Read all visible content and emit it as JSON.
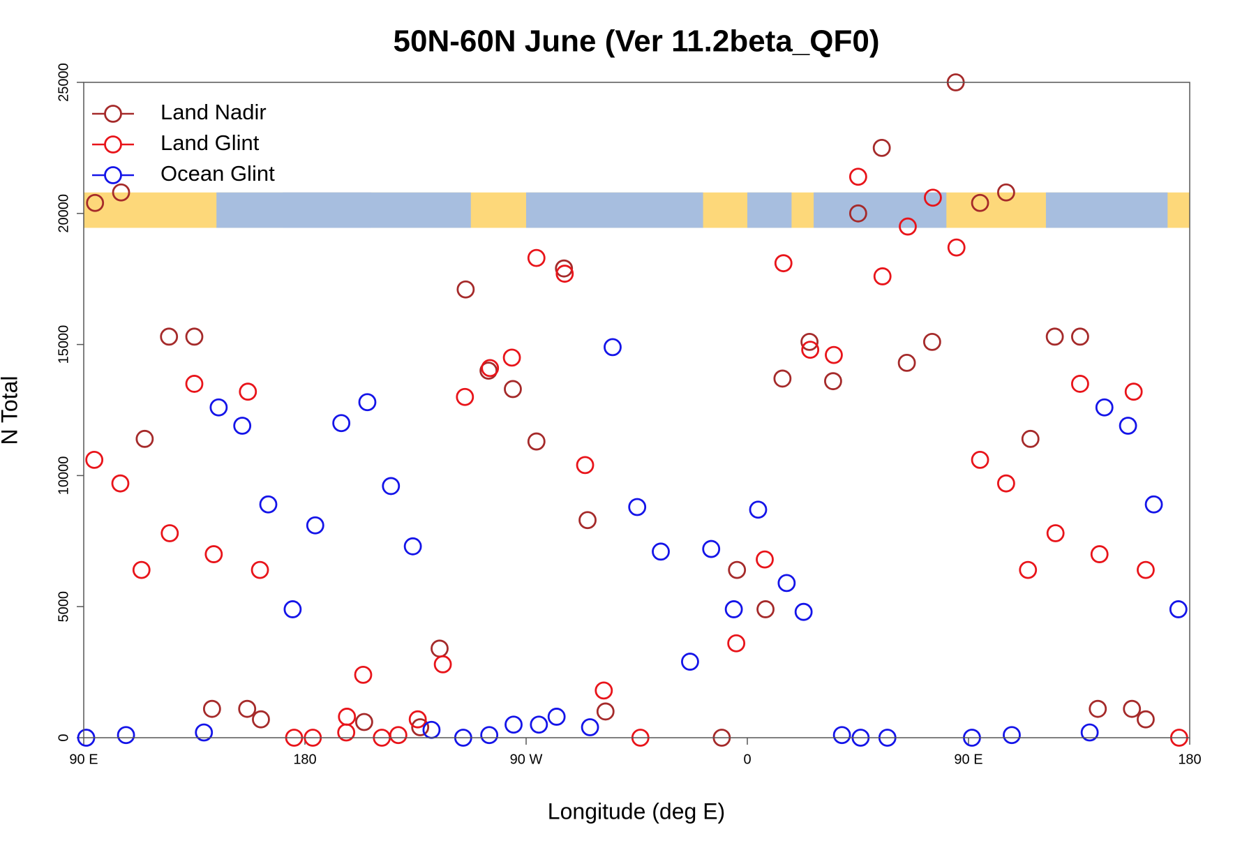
{
  "chart_data": {
    "type": "scatter",
    "title": "50N-60N June (Ver 11.2beta_QF0)",
    "x_label": "Longitude (deg E)",
    "y_label": "N Total",
    "xlim": [
      90,
      540
    ],
    "ylim": [
      0,
      25000
    ],
    "xticks": [
      {
        "value": 90,
        "label": "90 E"
      },
      180,
      {
        "value": 270,
        "label": "90 W"
      },
      {
        "value": 360,
        "label": "0"
      },
      {
        "value": 450,
        "label": "90 E"
      },
      {
        "value": 540,
        "label": "180"
      }
    ],
    "yticks": [
      0,
      5000,
      10000,
      15000,
      20000,
      25000
    ],
    "grid": false,
    "legend": "top-left",
    "series": [
      {
        "name": "Land Nadir",
        "color": "#a52a2a",
        "x": [
          94.6,
          105.2,
          114.8,
          124.7,
          135.0,
          142.2,
          156.5,
          162.1,
          204.1,
          226.9,
          234.8,
          245.4,
          254.7,
          264.6,
          274.2,
          285.4,
          295.0,
          302.3,
          349.6,
          355.8,
          367.4,
          374.3,
          385.3,
          394.9,
          405.1,
          414.7,
          424.9,
          435.2,
          444.8,
          454.7,
          465.3,
          475.2,
          485.1,
          495.4,
          502.6,
          516.5,
          522.1
        ],
        "values": [
          20400,
          20800,
          11400,
          15300,
          15300,
          1100,
          1100,
          700,
          600,
          400,
          3400,
          17100,
          14000,
          13300,
          11300,
          17900,
          8300,
          1000,
          0,
          6400,
          4900,
          13700,
          15100,
          13600,
          20000,
          22500,
          14300,
          15100,
          25000,
          20400,
          20800,
          11400,
          15300,
          15300,
          1100,
          1100,
          700
        ]
      },
      {
        "name": "Land Glint",
        "color": "#e8141a",
        "x": [
          94.3,
          104.9,
          113.5,
          125.0,
          135.0,
          142.9,
          156.8,
          161.7,
          175.6,
          183.2,
          196.8,
          197.1,
          203.7,
          211.3,
          218.0,
          225.9,
          236.1,
          245.1,
          255.3,
          264.2,
          274.2,
          285.7,
          294.0,
          301.6,
          316.5,
          355.5,
          367.1,
          374.7,
          385.6,
          395.2,
          405.1,
          415.0,
          425.3,
          435.5,
          445.1,
          454.7,
          465.3,
          474.2,
          485.4,
          495.4,
          503.3,
          517.2,
          522.1,
          535.7
        ],
        "values": [
          10600,
          9700,
          6400,
          7800,
          13500,
          7000,
          13200,
          6400,
          0,
          0,
          200,
          800,
          2400,
          0,
          100,
          700,
          2800,
          13000,
          14100,
          14500,
          18300,
          17700,
          10400,
          1800,
          0,
          3600,
          6800,
          18100,
          14800,
          14600,
          21400,
          17600,
          19500,
          20600,
          18700,
          10600,
          9700,
          6400,
          7800,
          13500,
          7000,
          13200,
          6400,
          0
        ]
      },
      {
        "name": "Ocean Glint",
        "color": "#1414e8",
        "x": [
          91.0,
          107.2,
          138.9,
          144.9,
          154.5,
          165.1,
          175.0,
          184.2,
          194.8,
          205.4,
          215.0,
          223.9,
          231.5,
          244.4,
          255.0,
          264.9,
          275.2,
          282.4,
          296.0,
          305.2,
          315.2,
          324.8,
          336.7,
          345.3,
          354.5,
          364.4,
          376.0,
          382.9,
          398.5,
          406.1,
          417.0,
          451.4,
          467.6,
          499.3,
          505.3,
          514.9,
          525.4,
          535.4
        ],
        "values": [
          0,
          100,
          200,
          12600,
          11900,
          8900,
          4900,
          8100,
          12000,
          12800,
          9600,
          7300,
          300,
          0,
          100,
          500,
          500,
          800,
          400,
          14900,
          8800,
          7100,
          2900,
          7200,
          4900,
          8700,
          5900,
          4800,
          100,
          0,
          0,
          0,
          100,
          200,
          12600,
          11900,
          8900,
          4900
        ]
      }
    ]
  }
}
